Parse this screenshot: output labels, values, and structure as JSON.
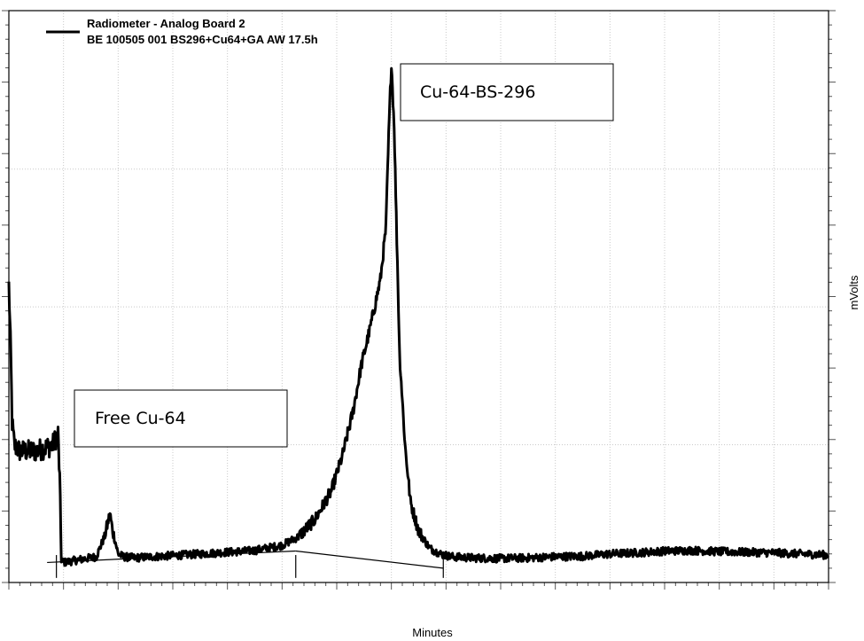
{
  "chart_data": {
    "type": "line",
    "title": "",
    "xlabel": "Minutes",
    "ylabel": "mVolts",
    "xlim": [
      0,
      15
    ],
    "ylim": [
      0,
      100
    ],
    "grid": true,
    "legend_placement": "top-left",
    "legend": {
      "line1": "Radiometer - Analog Board 2",
      "line2": "BE 100505 001 BS296+Cu64+GA AW 17.5h"
    },
    "annotations": {
      "free": "Free Cu-64",
      "peak": "Cu-64-BS-296"
    },
    "series": [
      {
        "color": "#000000",
        "x": [
          0.0,
          0.03,
          0.06,
          0.1,
          0.2,
          0.5,
          0.8,
          0.9,
          0.93,
          0.96,
          1.0,
          1.3,
          1.6,
          1.75,
          1.85,
          1.9,
          1.95,
          2.0,
          2.1,
          2.3,
          2.6,
          3.0,
          3.5,
          4.0,
          4.5,
          5.0,
          5.3,
          5.6,
          5.9,
          6.1,
          6.3,
          6.45,
          6.6,
          6.8,
          6.9,
          6.95,
          7.0,
          7.05,
          7.1,
          7.15,
          7.25,
          7.35,
          7.5,
          7.7,
          7.9,
          8.1,
          8.5,
          9.0,
          9.5,
          10.0,
          10.5,
          11.0,
          11.5,
          12.0,
          12.5,
          13.0,
          13.5,
          14.0,
          14.5,
          15.0
        ],
        "y": [
          52,
          42,
          28,
          24,
          23,
          23,
          24,
          26,
          18,
          4,
          3.5,
          4,
          4.5,
          8,
          12,
          9,
          7,
          5,
          4.5,
          4.3,
          4.5,
          4.7,
          5,
          5.3,
          5.6,
          6.5,
          8,
          11,
          16,
          22,
          30,
          38,
          44,
          53,
          62,
          78,
          91,
          80,
          60,
          40,
          24,
          14,
          9,
          6,
          5,
          4.5,
          4.3,
          4.2,
          4.3,
          4.5,
          4.6,
          5.0,
          5.2,
          5.5,
          5.6,
          5.4,
          5.3,
          5.2,
          5.0,
          4.8
        ]
      }
    ],
    "baselines": [
      {
        "x": [
          0.7,
          5.25
        ],
        "y": [
          3.5,
          5.5
        ]
      },
      {
        "x": [
          5.25,
          7.95
        ],
        "y": [
          5.5,
          2.5
        ]
      }
    ],
    "peak_markers": [
      0.87,
      5.25,
      7.95
    ]
  }
}
